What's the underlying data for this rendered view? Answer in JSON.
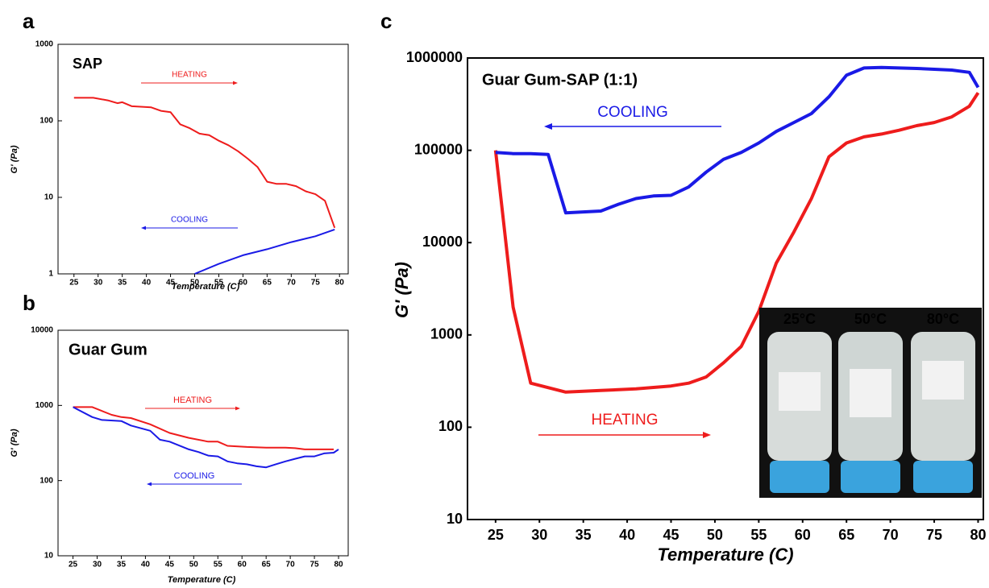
{
  "chart_data": [
    {
      "type": "line",
      "panel_label": "a",
      "title": "SAP",
      "x_label": "Temperature (C)",
      "y_label": "G' (Pa)",
      "log_y": true,
      "xlim": [
        21.7,
        81.8
      ],
      "ylim": [
        1,
        1000
      ],
      "xticks": [
        25,
        30,
        35,
        40,
        45,
        50,
        55,
        60,
        65,
        70,
        75,
        80
      ],
      "yticks": [
        1,
        10,
        100,
        1000
      ],
      "annotations": [
        "HEATING",
        "COOLING"
      ],
      "series": [
        {
          "name": "HEATING",
          "color": "#ee1c1c",
          "x": [
            25,
            29,
            32,
            34,
            35,
            37,
            41,
            43,
            45,
            47,
            49,
            51,
            53,
            55,
            57,
            59,
            61,
            63,
            65,
            67,
            69,
            71,
            73,
            75,
            77,
            79
          ],
          "values": [
            200,
            200,
            185,
            170,
            175,
            155,
            150,
            135,
            130,
            90,
            80,
            68,
            65,
            55,
            48,
            40,
            32,
            25,
            16,
            15,
            15,
            14,
            12,
            11,
            9,
            4
          ]
        },
        {
          "name": "COOLING",
          "color": "#1a1ae6",
          "x": [
            79,
            75,
            70,
            65,
            60,
            55,
            50
          ],
          "values": [
            3.8,
            3.1,
            2.6,
            2.1,
            1.75,
            1.35,
            1.0
          ]
        }
      ]
    },
    {
      "type": "line",
      "panel_label": "b",
      "title": "Guar Gum",
      "x_label": "Temperature (C)",
      "y_label": "G' (Pa)",
      "log_y": true,
      "xlim": [
        21.9,
        82
      ],
      "ylim": [
        10,
        10000
      ],
      "xticks": [
        25,
        30,
        35,
        40,
        45,
        50,
        55,
        60,
        65,
        70,
        75,
        80
      ],
      "yticks": [
        10,
        100,
        1000,
        10000
      ],
      "annotations": [
        "HEATING",
        "COOLING"
      ],
      "series": [
        {
          "name": "HEATING",
          "color": "#ee1c1c",
          "x": [
            25,
            29,
            33,
            35,
            37,
            41,
            45,
            49,
            53,
            55,
            57,
            61,
            65,
            69,
            71,
            73,
            79
          ],
          "values": [
            950,
            950,
            750,
            700,
            680,
            560,
            430,
            370,
            330,
            330,
            290,
            280,
            275,
            275,
            270,
            260,
            260
          ]
        },
        {
          "name": "COOLING",
          "color": "#1a1ae6",
          "x": [
            25,
            29,
            31,
            35,
            37,
            41,
            43,
            45,
            49,
            51,
            53,
            55,
            57,
            59,
            61,
            63,
            65,
            67,
            69,
            71,
            73,
            75,
            77,
            79,
            80
          ],
          "values": [
            950,
            700,
            640,
            620,
            540,
            460,
            350,
            330,
            260,
            240,
            215,
            210,
            180,
            170,
            165,
            155,
            150,
            165,
            180,
            195,
            210,
            210,
            230,
            235,
            260
          ]
        }
      ]
    },
    {
      "type": "line",
      "panel_label": "c",
      "title": "Guar Gum-SAP (1:1)",
      "x_label": "Temperature (C)",
      "y_label": "G' (Pa)",
      "log_y": true,
      "xlim": [
        21.8,
        80.6
      ],
      "ylim": [
        10,
        1000000
      ],
      "xticks": [
        25,
        30,
        35,
        40,
        45,
        50,
        55,
        60,
        65,
        70,
        75,
        80
      ],
      "yticks": [
        10,
        100,
        1000,
        10000,
        100000,
        1000000
      ],
      "annotations": [
        "HEATING",
        "COOLING"
      ],
      "inset_labels": [
        "25°C",
        "50°C",
        "80°C"
      ],
      "series": [
        {
          "name": "HEATING",
          "color": "#ee1c1c",
          "x": [
            25,
            27,
            29,
            33,
            37,
            41,
            45,
            47,
            49,
            51,
            53,
            55,
            57,
            59,
            61,
            63,
            65,
            67,
            69,
            71,
            73,
            75,
            77,
            79,
            80
          ],
          "values": [
            100000,
            2000,
            300,
            240,
            250,
            260,
            280,
            300,
            350,
            500,
            750,
            1800,
            6000,
            13000,
            30000,
            85000,
            120000,
            140000,
            150000,
            165000,
            185000,
            200000,
            230000,
            300000,
            420000
          ]
        },
        {
          "name": "COOLING",
          "color": "#1a1ae6",
          "x": [
            25,
            27,
            29,
            31,
            33,
            37,
            39,
            41,
            43,
            45,
            47,
            49,
            51,
            53,
            55,
            57,
            59,
            61,
            63,
            65,
            67,
            69,
            73,
            77,
            79,
            80
          ],
          "values": [
            95000,
            92000,
            92000,
            90000,
            21000,
            22000,
            26000,
            30000,
            32000,
            32500,
            40000,
            58000,
            80000,
            95000,
            120000,
            160000,
            200000,
            250000,
            380000,
            650000,
            780000,
            790000,
            770000,
            740000,
            700000,
            480000
          ]
        }
      ]
    }
  ]
}
